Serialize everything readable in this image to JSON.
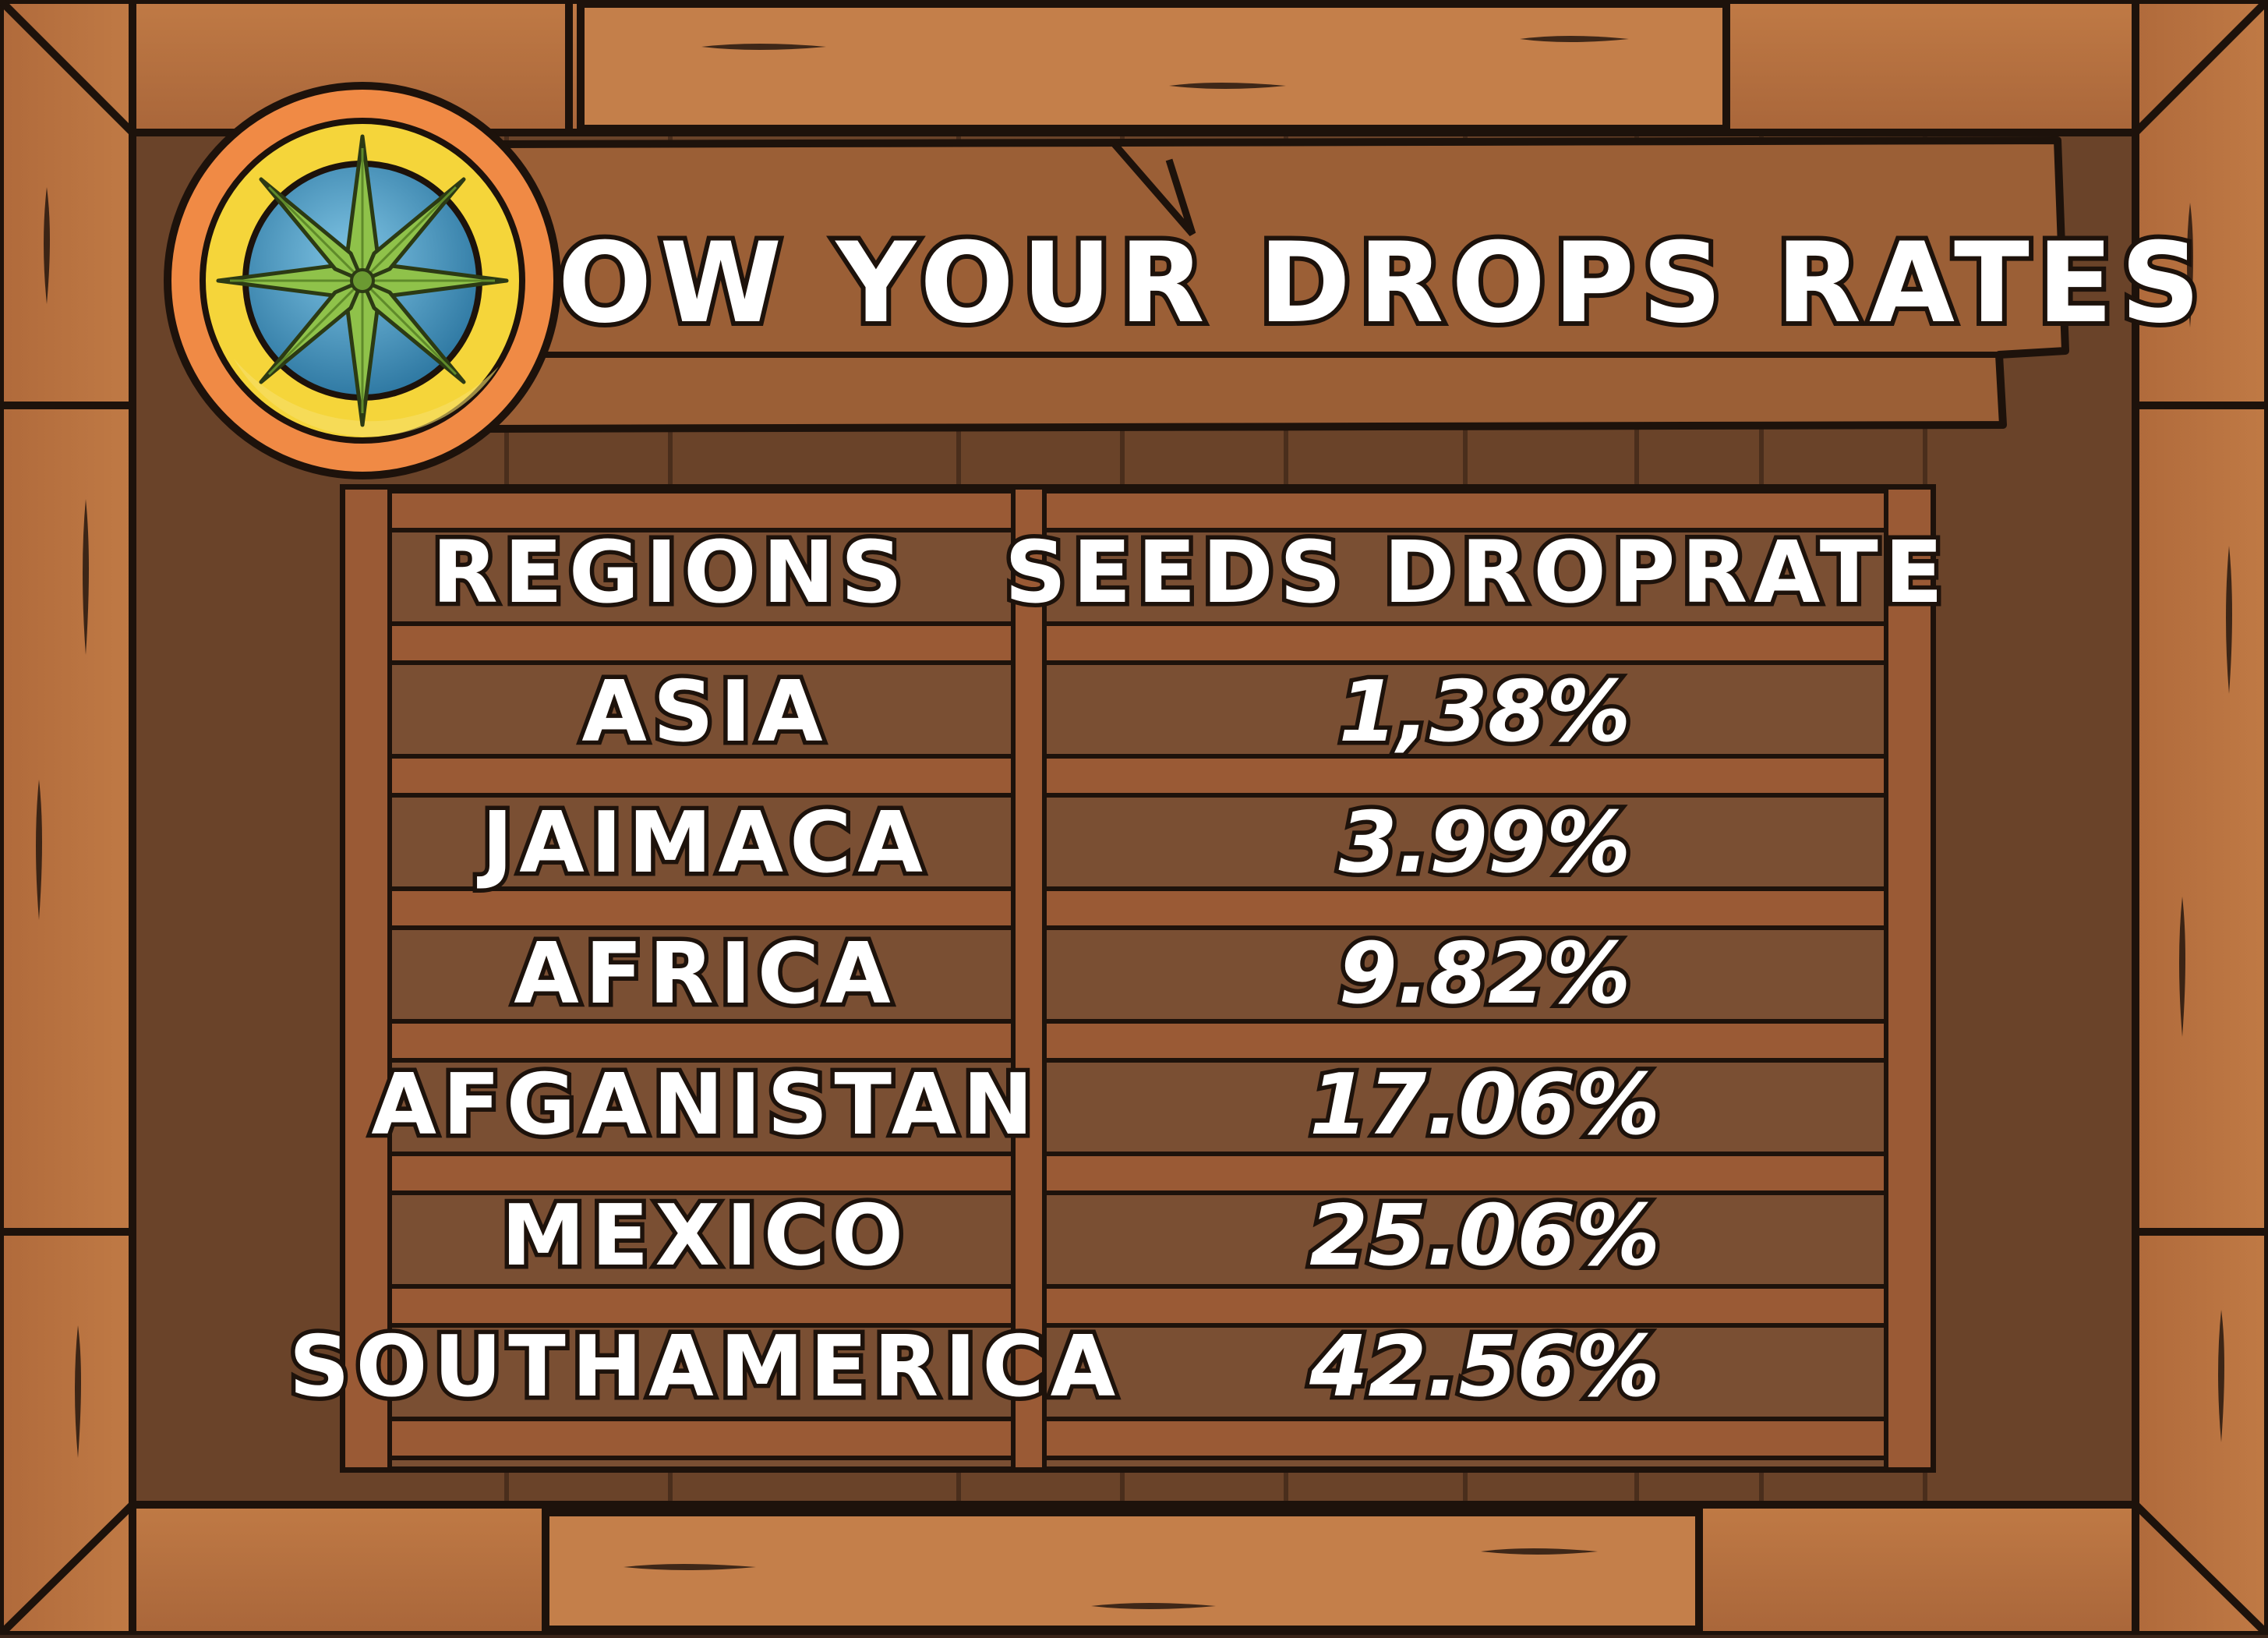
{
  "title": "KNOW YOUR DROPS RATES",
  "emblem": {
    "icon": "cannabis-leaf-compass-icon"
  },
  "table": {
    "headers": {
      "region": "REGIONS",
      "rate": "SEEDS DROPRATE"
    },
    "rows": [
      {
        "region": "ASIA",
        "rate": "1,38%"
      },
      {
        "region": "JAIMACA",
        "rate": "3.99%"
      },
      {
        "region": "AFRICA",
        "rate": "9.82%"
      },
      {
        "region": "AFGANISTAN",
        "rate": "17.06%"
      },
      {
        "region": "MEXICO",
        "rate": "25.06%"
      },
      {
        "region": "SOUTHAMERICA",
        "rate": "42.56%"
      }
    ]
  },
  "colors": {
    "wood_light": "#b5713f",
    "wood_mid": "#8a5230",
    "wood_dark": "#6e4529",
    "board_bg": "#7a4f33",
    "rail": "#9a5a35",
    "outline": "#1d120b",
    "text": "#ffffff",
    "emblem_ring": "#f08a45",
    "emblem_gold": "#f5d53a",
    "emblem_blue": "#3f8fb8",
    "leaf_green": "#8fc24a"
  }
}
